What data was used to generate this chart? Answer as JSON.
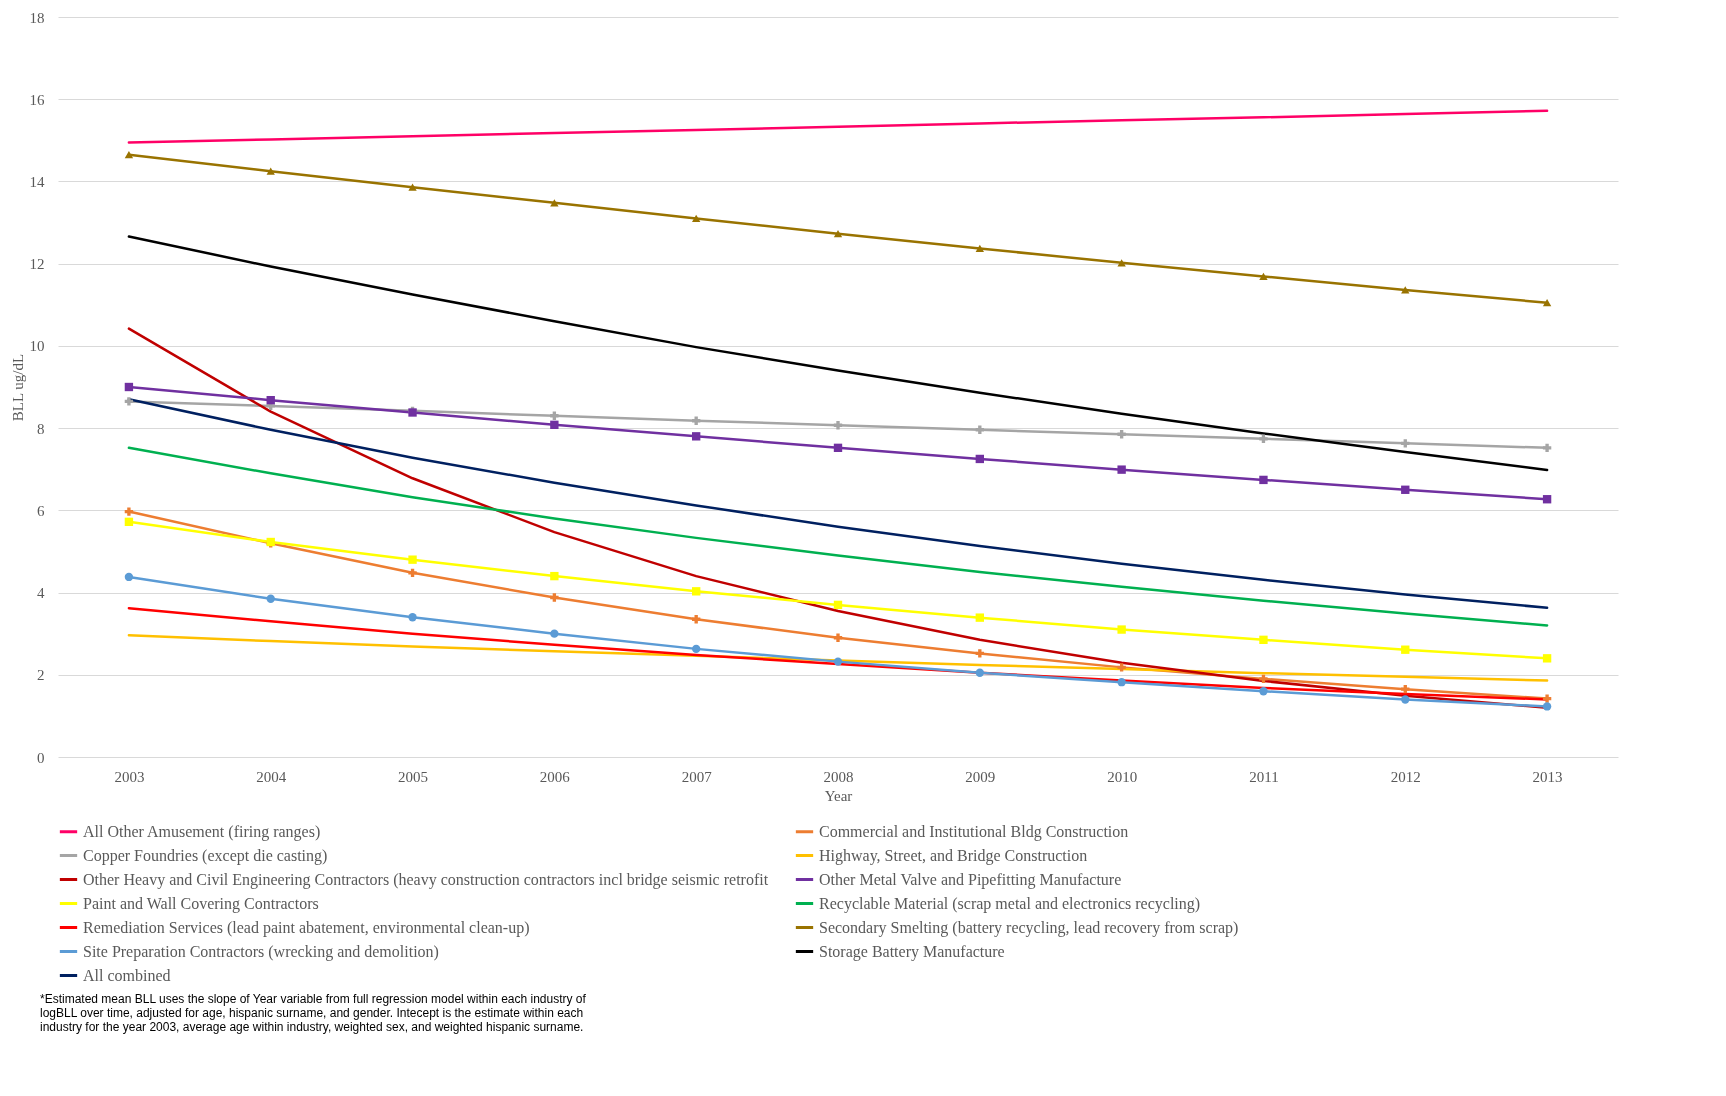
{
  "chart_data": {
    "type": "line",
    "xlabel": "Year",
    "ylabel": "BLL ug/dL",
    "categories": [
      "2003",
      "2004",
      "2005",
      "2006",
      "2007",
      "2008",
      "2009",
      "2010",
      "2011",
      "2012",
      "2013"
    ],
    "ylim": [
      0,
      18
    ],
    "yticks": [
      0,
      2,
      4,
      6,
      8,
      10,
      12,
      14,
      16,
      18
    ],
    "grid": "y",
    "legend": "bottom",
    "series": [
      {
        "name": "All Other Amusement (firing ranges)",
        "color": "#ff0066",
        "marker": "none",
        "values": [
          14.95,
          15.02,
          15.1,
          15.18,
          15.25,
          15.33,
          15.41,
          15.49,
          15.56,
          15.64,
          15.72
        ]
      },
      {
        "name": "Commercial and Institutional Bldg Construction",
        "color": "#ed7d31",
        "marker": "cross",
        "values": [
          5.97,
          5.2,
          4.48,
          3.88,
          3.35,
          2.9,
          2.52,
          2.18,
          1.9,
          1.65,
          1.42
        ]
      },
      {
        "name": "Copper Foundries (except die casting)",
        "color": "#a5a5a5",
        "marker": "cross",
        "values": [
          8.65,
          8.54,
          8.42,
          8.3,
          8.18,
          8.07,
          7.96,
          7.85,
          7.74,
          7.63,
          7.52
        ]
      },
      {
        "name": "Highway, Street, and Bridge Construction",
        "color": "#ffc000",
        "marker": "none",
        "values": [
          2.96,
          2.82,
          2.69,
          2.57,
          2.46,
          2.35,
          2.24,
          2.14,
          2.04,
          1.95,
          1.86
        ]
      },
      {
        "name": "Other Heavy and Civil Engineering Contractors (heavy construction contractors incl bridge seismic retrofit",
        "color": "#c00000",
        "marker": "none",
        "values": [
          10.42,
          8.4,
          6.78,
          5.47,
          4.4,
          3.55,
          2.85,
          2.29,
          1.85,
          1.49,
          1.2
        ]
      },
      {
        "name": "Other Metal Valve and Pipefitting Manufacture",
        "color": "#7030a0",
        "marker": "square",
        "values": [
          9.0,
          8.68,
          8.38,
          8.08,
          7.8,
          7.52,
          7.25,
          6.99,
          6.74,
          6.5,
          6.27
        ]
      },
      {
        "name": "Paint and Wall Covering Contractors",
        "color": "#ffff00",
        "marker": "square",
        "values": [
          5.72,
          5.23,
          4.8,
          4.4,
          4.03,
          3.7,
          3.39,
          3.1,
          2.85,
          2.61,
          2.4
        ]
      },
      {
        "name": "Recyclable Material (scrap metal and electronics recycling)",
        "color": "#00b050",
        "marker": "none",
        "values": [
          7.52,
          6.9,
          6.32,
          5.8,
          5.33,
          4.9,
          4.5,
          4.14,
          3.8,
          3.49,
          3.2
        ]
      },
      {
        "name": "Remediation Services (lead paint abatement, environmental clean-up)",
        "color": "#ff0000",
        "marker": "none",
        "values": [
          3.62,
          3.3,
          3.0,
          2.73,
          2.48,
          2.26,
          2.05,
          1.86,
          1.68,
          1.53,
          1.4
        ]
      },
      {
        "name": "Secondary Smelting (battery recycling, lead recovery from scrap)",
        "color": "#997300",
        "marker": "triangle",
        "values": [
          14.65,
          14.25,
          13.86,
          13.48,
          13.1,
          12.73,
          12.37,
          12.02,
          11.69,
          11.36,
          11.05
        ]
      },
      {
        "name": "Site Preparation Contractors (wrecking and demolition)",
        "color": "#5b9bd5",
        "marker": "circle",
        "values": [
          4.38,
          3.85,
          3.4,
          3.0,
          2.63,
          2.32,
          2.05,
          1.82,
          1.6,
          1.4,
          1.23
        ]
      },
      {
        "name": "Storage Battery Manufacture",
        "color": "#000000",
        "marker": "none",
        "values": [
          12.66,
          11.93,
          11.25,
          10.6,
          9.97,
          9.4,
          8.86,
          8.35,
          7.87,
          7.42,
          6.98
        ]
      },
      {
        "name": "All combined",
        "color": "#002060",
        "marker": "none",
        "values": [
          8.7,
          7.96,
          7.28,
          6.67,
          6.12,
          5.6,
          5.13,
          4.7,
          4.31,
          3.95,
          3.63
        ]
      }
    ],
    "annotations": [
      "*Estimated mean BLL uses the slope of Year variable from full regression model within each industry of logBLL over time, adjusted for age, hispanic surname, and gender.  Intecept is the estimate within each industry for the year 2003, average age within industry, weighted sex, and weighted hispanic surname."
    ]
  }
}
